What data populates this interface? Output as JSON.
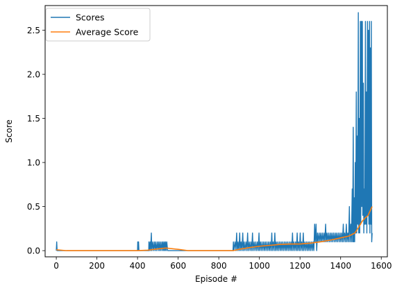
{
  "chart_data": {
    "type": "line",
    "title": "",
    "xlabel": "Episode #",
    "ylabel": "Score",
    "xlim": [
      -55,
      1630
    ],
    "ylim": [
      -0.07,
      2.78
    ],
    "x_ticks": [
      0,
      200,
      400,
      600,
      800,
      1000,
      1200,
      1400,
      1600
    ],
    "y_ticks": [
      0.0,
      0.5,
      1.0,
      1.5,
      2.0,
      2.5
    ],
    "grid": false,
    "legend_position": "upper-left",
    "series": [
      {
        "name": "Scores",
        "color": "#1f77b4",
        "points": [
          [
            0,
            0.0
          ],
          [
            2,
            0.1
          ],
          [
            4,
            0.0
          ],
          [
            400,
            0.0
          ],
          [
            401,
            0.1
          ],
          [
            403,
            0.0
          ],
          [
            405,
            0.1
          ],
          [
            407,
            0.0
          ],
          [
            455,
            0.0
          ],
          [
            456,
            0.1
          ],
          [
            458,
            0.0
          ],
          [
            462,
            0.1
          ],
          [
            464,
            0.0
          ],
          [
            468,
            0.2
          ],
          [
            470,
            0.0
          ],
          [
            475,
            0.1
          ],
          [
            478,
            0.0
          ],
          [
            483,
            0.1
          ],
          [
            486,
            0.0
          ],
          [
            490,
            0.1
          ],
          [
            493,
            0.0
          ],
          [
            498,
            0.1
          ],
          [
            501,
            0.0
          ],
          [
            505,
            0.1
          ],
          [
            508,
            0.0
          ],
          [
            512,
            0.1
          ],
          [
            515,
            0.0
          ],
          [
            520,
            0.1
          ],
          [
            523,
            0.0
          ],
          [
            526,
            0.1
          ],
          [
            529,
            0.0
          ],
          [
            532,
            0.1
          ],
          [
            535,
            0.0
          ],
          [
            538,
            0.1
          ],
          [
            541,
            0.0
          ],
          [
            544,
            0.1
          ],
          [
            548,
            0.0
          ],
          [
            870,
            0.0
          ],
          [
            872,
            0.1
          ],
          [
            874,
            0.0
          ],
          [
            880,
            0.1
          ],
          [
            884,
            0.0
          ],
          [
            888,
            0.2
          ],
          [
            891,
            0.0
          ],
          [
            895,
            0.1
          ],
          [
            899,
            0.0
          ],
          [
            903,
            0.2
          ],
          [
            906,
            0.0
          ],
          [
            910,
            0.1
          ],
          [
            914,
            0.0
          ],
          [
            918,
            0.2
          ],
          [
            921,
            0.0
          ],
          [
            925,
            0.1
          ],
          [
            929,
            0.0
          ],
          [
            934,
            0.1
          ],
          [
            938,
            0.0
          ],
          [
            942,
            0.2
          ],
          [
            945,
            0.0
          ],
          [
            950,
            0.1
          ],
          [
            954,
            0.0
          ],
          [
            958,
            0.1
          ],
          [
            962,
            0.0
          ],
          [
            966,
            0.2
          ],
          [
            969,
            0.0
          ],
          [
            974,
            0.1
          ],
          [
            978,
            0.0
          ],
          [
            982,
            0.1
          ],
          [
            986,
            0.0
          ],
          [
            990,
            0.1
          ],
          [
            994,
            0.0
          ],
          [
            998,
            0.2
          ],
          [
            1001,
            0.0
          ],
          [
            1005,
            0.1
          ],
          [
            1009,
            0.0
          ],
          [
            1013,
            0.1
          ],
          [
            1017,
            0.0
          ],
          [
            1021,
            0.1
          ],
          [
            1025,
            0.0
          ],
          [
            1029,
            0.1
          ],
          [
            1033,
            0.0
          ],
          [
            1037,
            0.1
          ],
          [
            1041,
            0.0
          ],
          [
            1045,
            0.1
          ],
          [
            1049,
            0.0
          ],
          [
            1053,
            0.1
          ],
          [
            1057,
            0.0
          ],
          [
            1061,
            0.2
          ],
          [
            1064,
            0.0
          ],
          [
            1068,
            0.1
          ],
          [
            1072,
            0.0
          ],
          [
            1076,
            0.2
          ],
          [
            1079,
            0.0
          ],
          [
            1083,
            0.1
          ],
          [
            1087,
            0.0
          ],
          [
            1091,
            0.1
          ],
          [
            1095,
            0.0
          ],
          [
            1099,
            0.1
          ],
          [
            1103,
            0.0
          ],
          [
            1107,
            0.1
          ],
          [
            1111,
            0.0
          ],
          [
            1115,
            0.1
          ],
          [
            1119,
            0.0
          ],
          [
            1123,
            0.1
          ],
          [
            1127,
            0.0
          ],
          [
            1131,
            0.1
          ],
          [
            1135,
            0.0
          ],
          [
            1139,
            0.1
          ],
          [
            1143,
            0.0
          ],
          [
            1147,
            0.1
          ],
          [
            1151,
            0.0
          ],
          [
            1155,
            0.1
          ],
          [
            1159,
            0.0
          ],
          [
            1163,
            0.2
          ],
          [
            1166,
            0.0
          ],
          [
            1170,
            0.1
          ],
          [
            1174,
            0.0
          ],
          [
            1178,
            0.1
          ],
          [
            1182,
            0.0
          ],
          [
            1186,
            0.2
          ],
          [
            1189,
            0.0
          ],
          [
            1193,
            0.1
          ],
          [
            1197,
            0.0
          ],
          [
            1201,
            0.2
          ],
          [
            1204,
            0.0
          ],
          [
            1208,
            0.1
          ],
          [
            1212,
            0.0
          ],
          [
            1216,
            0.2
          ],
          [
            1219,
            0.0
          ],
          [
            1224,
            0.1
          ],
          [
            1228,
            0.0
          ],
          [
            1232,
            0.1
          ],
          [
            1236,
            0.0
          ],
          [
            1240,
            0.1
          ],
          [
            1244,
            0.0
          ],
          [
            1248,
            0.1
          ],
          [
            1252,
            0.0
          ],
          [
            1256,
            0.1
          ],
          [
            1260,
            0.0
          ],
          [
            1264,
            0.1
          ],
          [
            1268,
            0.0
          ],
          [
            1272,
            0.3
          ],
          [
            1275,
            0.1
          ],
          [
            1279,
            0.3
          ],
          [
            1282,
            0.0
          ],
          [
            1286,
            0.2
          ],
          [
            1290,
            0.1
          ],
          [
            1294,
            0.2
          ],
          [
            1298,
            0.1
          ],
          [
            1302,
            0.2
          ],
          [
            1306,
            0.1
          ],
          [
            1310,
            0.2
          ],
          [
            1314,
            0.1
          ],
          [
            1318,
            0.2
          ],
          [
            1322,
            0.1
          ],
          [
            1326,
            0.3
          ],
          [
            1329,
            0.1
          ],
          [
            1333,
            0.2
          ],
          [
            1337,
            0.1
          ],
          [
            1341,
            0.2
          ],
          [
            1345,
            0.1
          ],
          [
            1349,
            0.2
          ],
          [
            1353,
            0.1
          ],
          [
            1357,
            0.2
          ],
          [
            1361,
            0.1
          ],
          [
            1365,
            0.2
          ],
          [
            1369,
            0.1
          ],
          [
            1373,
            0.2
          ],
          [
            1377,
            0.1
          ],
          [
            1381,
            0.2
          ],
          [
            1385,
            0.1
          ],
          [
            1389,
            0.2
          ],
          [
            1393,
            0.1
          ],
          [
            1397,
            0.2
          ],
          [
            1401,
            0.1
          ],
          [
            1405,
            0.2
          ],
          [
            1409,
            0.1
          ],
          [
            1413,
            0.3
          ],
          [
            1416,
            0.1
          ],
          [
            1420,
            0.2
          ],
          [
            1424,
            0.1
          ],
          [
            1428,
            0.3
          ],
          [
            1431,
            0.1
          ],
          [
            1435,
            0.2
          ],
          [
            1439,
            0.1
          ],
          [
            1443,
            0.5
          ],
          [
            1446,
            0.1
          ],
          [
            1450,
            0.3
          ],
          [
            1453,
            0.1
          ],
          [
            1457,
            0.7
          ],
          [
            1459,
            0.1
          ],
          [
            1462,
            1.4
          ],
          [
            1464,
            0.1
          ],
          [
            1467,
            0.6
          ],
          [
            1469,
            0.1
          ],
          [
            1472,
            1.0
          ],
          [
            1474,
            0.2
          ],
          [
            1477,
            1.8
          ],
          [
            1479,
            0.2
          ],
          [
            1482,
            1.3
          ],
          [
            1484,
            0.3
          ],
          [
            1487,
            2.7
          ],
          [
            1489,
            0.2
          ],
          [
            1492,
            1.5
          ],
          [
            1494,
            0.2
          ],
          [
            1497,
            2.6
          ],
          [
            1499,
            0.3
          ],
          [
            1502,
            2.6
          ],
          [
            1504,
            0.5
          ],
          [
            1507,
            2.6
          ],
          [
            1509,
            0.4
          ],
          [
            1512,
            1.9
          ],
          [
            1514,
            0.2
          ],
          [
            1517,
            0.7
          ],
          [
            1519,
            0.3
          ],
          [
            1522,
            2.6
          ],
          [
            1524,
            0.3
          ],
          [
            1527,
            1.8
          ],
          [
            1529,
            0.2
          ],
          [
            1532,
            2.6
          ],
          [
            1534,
            0.4
          ],
          [
            1537,
            2.5
          ],
          [
            1539,
            0.3
          ],
          [
            1542,
            2.6
          ],
          [
            1544,
            0.2
          ],
          [
            1547,
            2.3
          ],
          [
            1549,
            0.3
          ],
          [
            1551,
            2.6
          ],
          [
            1553,
            0.1
          ],
          [
            1555,
            0.2
          ]
        ]
      },
      {
        "name": "Average Score",
        "color": "#ff7f0e",
        "points": [
          [
            0,
            0.01
          ],
          [
            50,
            0.0
          ],
          [
            100,
            0.0
          ],
          [
            200,
            0.0
          ],
          [
            300,
            0.0
          ],
          [
            400,
            0.0
          ],
          [
            450,
            0.005
          ],
          [
            500,
            0.02
          ],
          [
            540,
            0.03
          ],
          [
            600,
            0.015
          ],
          [
            650,
            0.0
          ],
          [
            700,
            0.0
          ],
          [
            800,
            0.0
          ],
          [
            870,
            0.0
          ],
          [
            900,
            0.015
          ],
          [
            950,
            0.035
          ],
          [
            1000,
            0.05
          ],
          [
            1050,
            0.06
          ],
          [
            1100,
            0.07
          ],
          [
            1150,
            0.075
          ],
          [
            1200,
            0.075
          ],
          [
            1250,
            0.085
          ],
          [
            1300,
            0.1
          ],
          [
            1350,
            0.12
          ],
          [
            1400,
            0.145
          ],
          [
            1440,
            0.165
          ],
          [
            1470,
            0.2
          ],
          [
            1490,
            0.27
          ],
          [
            1505,
            0.33
          ],
          [
            1520,
            0.37
          ],
          [
            1535,
            0.4
          ],
          [
            1545,
            0.45
          ],
          [
            1555,
            0.5
          ]
        ]
      }
    ]
  }
}
